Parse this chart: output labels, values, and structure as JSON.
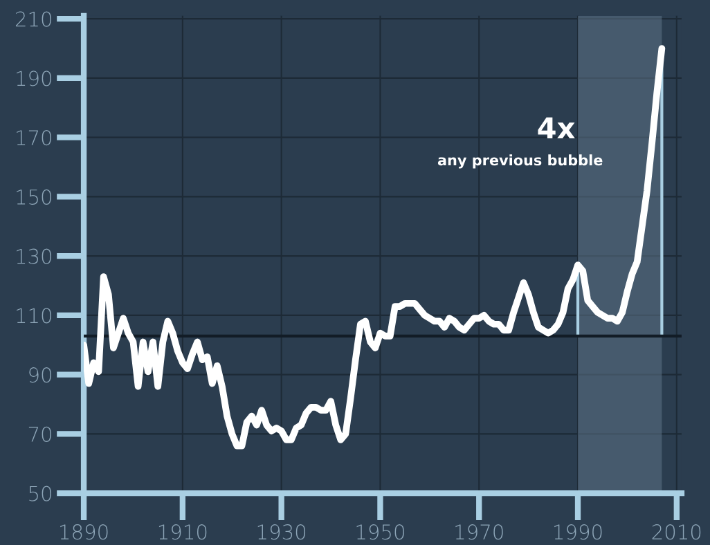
{
  "chart_data": {
    "type": "line",
    "x": [
      1890,
      1891,
      1892,
      1893,
      1894,
      1895,
      1896,
      1897,
      1898,
      1899,
      1900,
      1901,
      1902,
      1903,
      1904,
      1905,
      1906,
      1907,
      1908,
      1909,
      1910,
      1911,
      1912,
      1913,
      1914,
      1915,
      1916,
      1917,
      1918,
      1919,
      1920,
      1921,
      1922,
      1923,
      1924,
      1925,
      1926,
      1927,
      1928,
      1929,
      1930,
      1931,
      1932,
      1933,
      1934,
      1935,
      1936,
      1937,
      1938,
      1939,
      1940,
      1941,
      1942,
      1943,
      1944,
      1945,
      1946,
      1947,
      1948,
      1949,
      1950,
      1951,
      1952,
      1953,
      1954,
      1955,
      1956,
      1957,
      1958,
      1959,
      1960,
      1961,
      1962,
      1963,
      1964,
      1965,
      1966,
      1967,
      1968,
      1969,
      1970,
      1971,
      1972,
      1973,
      1974,
      1975,
      1976,
      1977,
      1978,
      1979,
      1980,
      1981,
      1982,
      1983,
      1984,
      1985,
      1986,
      1987,
      1988,
      1989,
      1990,
      1991,
      1992,
      1993,
      1994,
      1995,
      1996,
      1997,
      1998,
      1999,
      2000,
      2001,
      2002,
      2003,
      2004,
      2005,
      2006,
      2007
    ],
    "series": [
      {
        "color": "#ffffff",
        "values": [
          100,
          87,
          94,
          91,
          123,
          117,
          99,
          104,
          109,
          104,
          101,
          86,
          101,
          91,
          101,
          86,
          101,
          108,
          104,
          98,
          94,
          92,
          97,
          101,
          95,
          96,
          87,
          93,
          86,
          76,
          70,
          66,
          66,
          74,
          76,
          73,
          78,
          73,
          71,
          72,
          71,
          68,
          68,
          72,
          73,
          77,
          79,
          79,
          78,
          78,
          81,
          73,
          68,
          70,
          82,
          95,
          107,
          108,
          101,
          99,
          104,
          103,
          103,
          113,
          113,
          114,
          114,
          114,
          112,
          110,
          109,
          108,
          108,
          106,
          109,
          108,
          106,
          105,
          107,
          109,
          109,
          110,
          108,
          107,
          107,
          105,
          105,
          111,
          116,
          121,
          117,
          111,
          106,
          105,
          104,
          105,
          107,
          111,
          119,
          122,
          127,
          125,
          115,
          113,
          111,
          110,
          109,
          109,
          108,
          111,
          118,
          124,
          128,
          140,
          152,
          168,
          185,
          200
        ]
      }
    ],
    "xlim": [
      1890,
      2011
    ],
    "ylim": [
      50,
      211
    ],
    "xticks": [
      1890,
      1910,
      1930,
      1950,
      1970,
      1990,
      2010
    ],
    "yticks": [
      50,
      70,
      90,
      110,
      130,
      150,
      170,
      190,
      210
    ],
    "grid": true,
    "line_style": "solid",
    "marker": "none",
    "ref_lines": [
      {
        "axis": "y",
        "value": 103,
        "color": "#121c26"
      },
      {
        "axis": "x",
        "value": 1990,
        "color": "#a9cfe3"
      },
      {
        "axis": "x",
        "value": 2007,
        "color": "#a9cfe3"
      }
    ],
    "bands": [
      {
        "axis": "x",
        "from": 1990,
        "to": 2007,
        "color": "#5d7387"
      }
    ],
    "annotations": [
      "4x",
      "any previous bubble"
    ]
  }
}
